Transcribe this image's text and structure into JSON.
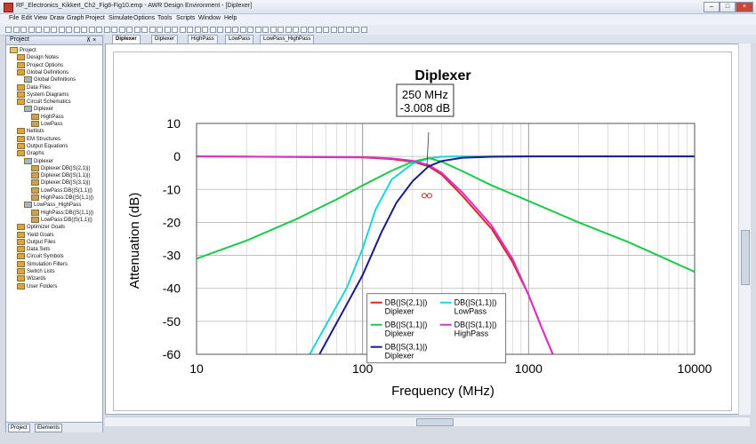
{
  "window": {
    "title": "RF_Electronics_Kikkert_Ch2_Fig8-Fig10.emp - AWR Design Environment - [Diplexer]",
    "minimize": "–",
    "maximize": "□",
    "close": "×"
  },
  "menu": [
    "File",
    "Edit",
    "View",
    "Draw",
    "Graph",
    "Project",
    "Simulate",
    "Options",
    "Tools",
    "Scripts",
    "Window",
    "Help"
  ],
  "left_panel": {
    "title": "Project",
    "pin": "⊼ ×",
    "tree": [
      {
        "label": "Project",
        "level": 0
      },
      {
        "label": "Design Notes",
        "level": 1
      },
      {
        "label": "Project Options",
        "level": 1
      },
      {
        "label": "Global Definitions",
        "level": 1
      },
      {
        "label": "Global Definitions",
        "level": 2
      },
      {
        "label": "Data Files",
        "level": 1
      },
      {
        "label": "System Diagrams",
        "level": 1
      },
      {
        "label": "Circuit Schematics",
        "level": 1
      },
      {
        "label": "Diplexer",
        "level": 2
      },
      {
        "label": "HighPass",
        "level": 3
      },
      {
        "label": "LowPass",
        "level": 3
      },
      {
        "label": "Netlists",
        "level": 1
      },
      {
        "label": "EM Structures",
        "level": 1
      },
      {
        "label": "Output Equations",
        "level": 1
      },
      {
        "label": "Graphs",
        "level": 1
      },
      {
        "label": "Diplexer",
        "level": 2
      },
      {
        "label": "Diplexer:DB(|S(2,1)|)",
        "level": 3
      },
      {
        "label": "Diplexer:DB(|S(1,1)|)",
        "level": 3
      },
      {
        "label": "Diplexer:DB(|S(3,1)|)",
        "level": 3
      },
      {
        "label": "LowPass:DB(|S(1,1)|)",
        "level": 3
      },
      {
        "label": "HighPass:DB(|S(1,1)|)",
        "level": 3
      },
      {
        "label": "LowPass_HighPass",
        "level": 2
      },
      {
        "label": "HighPass:DB(|S(1,1)|)",
        "level": 3
      },
      {
        "label": "LowPass:DB(|S(1,1)|)",
        "level": 3
      },
      {
        "label": "Optimizer Goals",
        "level": 1
      },
      {
        "label": "Yield Goals",
        "level": 1
      },
      {
        "label": "Output Files",
        "level": 1
      },
      {
        "label": "Data Sets",
        "level": 1
      },
      {
        "label": "Circuit Symbols",
        "level": 1
      },
      {
        "label": "Simulation Filters",
        "level": 1
      },
      {
        "label": "Switch Lists",
        "level": 1
      },
      {
        "label": "Wizards",
        "level": 1
      },
      {
        "label": "User Folders",
        "level": 1
      }
    ],
    "bottom_tabs": [
      "Project",
      "Elements"
    ]
  },
  "doc_tabs": [
    {
      "label": "Diplexer",
      "active": true
    },
    {
      "label": "Diplexer",
      "active": false
    },
    {
      "label": "HighPass",
      "active": false
    },
    {
      "label": "LowPass",
      "active": false
    },
    {
      "label": "LowPass_HighPass",
      "active": false
    }
  ],
  "chart_data": {
    "type": "line",
    "title": "Diplexer",
    "xlabel": "Frequency (MHz)",
    "ylabel": "Attenuation (dB)",
    "x_scale": "log",
    "xlim": [
      10,
      10000
    ],
    "ylim": [
      -60,
      10
    ],
    "x_ticks": [
      "10",
      "100",
      "1000",
      "10000"
    ],
    "y_ticks": [
      "10",
      "0",
      "-10",
      "-20",
      "-30",
      "-40",
      "-50",
      "-60"
    ],
    "grid": true,
    "legend_position": "bottom-center",
    "marker": {
      "label_freq": "250 MHz",
      "label_value": "-3.008 dB",
      "x": 250,
      "y": -3.008
    },
    "series": [
      {
        "name": "DB(|S(2,1)|)",
        "sub": "Diplexer",
        "color": "#d62828",
        "x": [
          10,
          100,
          150,
          200,
          250,
          300,
          400,
          600,
          800,
          1000,
          1200,
          1400
        ],
        "y": [
          0,
          -0.3,
          -0.8,
          -1.6,
          -3.0,
          -5.5,
          -12,
          -22,
          -32,
          -42,
          -52,
          -60
        ]
      },
      {
        "name": "DB(|S(1,1)|)",
        "sub": "LowPass",
        "color": "#1cd6d6",
        "x": [
          48,
          80,
          100,
          120,
          150,
          200,
          250,
          300,
          400,
          10000
        ],
        "y": [
          -60,
          -40,
          -28,
          -16,
          -7,
          -2.2,
          -0.6,
          -0.1,
          0,
          0
        ]
      },
      {
        "name": "DB(|S(1,1)|)",
        "sub": "Diplexer",
        "color": "#1cc94b",
        "x": [
          10,
          20,
          40,
          70,
          100,
          150,
          200,
          250,
          300,
          400,
          600,
          1000,
          2000,
          4000,
          10000
        ],
        "y": [
          -31,
          -25.5,
          -19,
          -13,
          -8.8,
          -4.3,
          -1.6,
          -0.5,
          -1.6,
          -4.5,
          -8.8,
          -13.5,
          -20,
          -26,
          -35
        ]
      },
      {
        "name": "DB(|S(1,1)|)",
        "sub": "HighPass",
        "color": "#d634c8",
        "x": [
          10,
          100,
          150,
          200,
          250,
          300,
          400,
          600,
          800,
          1000,
          1200,
          1400
        ],
        "y": [
          0,
          -0.2,
          -0.6,
          -1.3,
          -2.6,
          -5.0,
          -11,
          -21,
          -31,
          -42,
          -52,
          -60
        ]
      },
      {
        "name": "DB(|S(3,1)|)",
        "sub": "Diplexer",
        "color": "#1a1a8c",
        "x": [
          55,
          80,
          100,
          130,
          160,
          200,
          250,
          300,
          400,
          600,
          1000,
          10000
        ],
        "y": [
          -60,
          -45,
          -36,
          -23,
          -14,
          -7.5,
          -3.0,
          -1.4,
          -0.4,
          -0.1,
          0,
          0
        ]
      }
    ]
  }
}
